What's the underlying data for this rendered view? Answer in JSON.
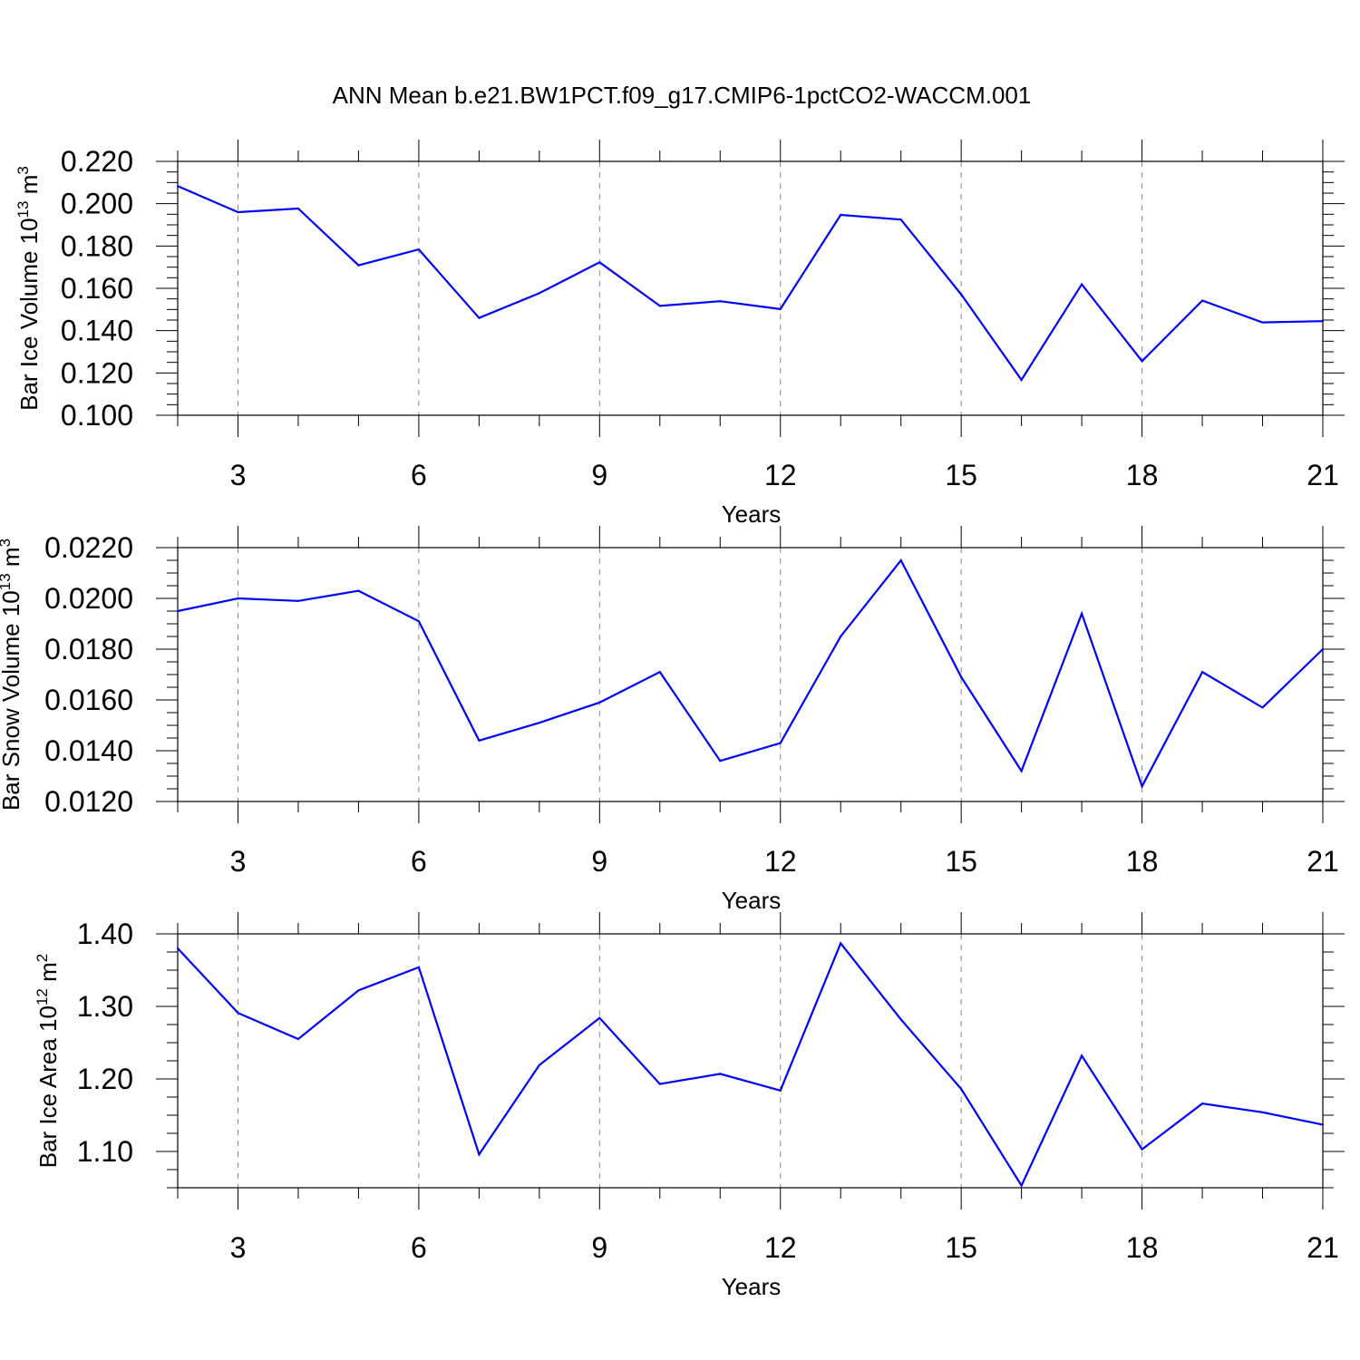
{
  "title": "ANN Mean b.e21.BW1PCT.f09_g17.CMIP6-1pctCO2-WACCM.001",
  "colors": {
    "series": "#0000ff",
    "axis": "#000000",
    "grid": "#888888"
  },
  "chart_data": [
    {
      "type": "line",
      "ylabel": {
        "text": "Bar Ice Volume 10",
        "sup1": "13",
        "mid": " m",
        "sup2": "3"
      },
      "xlabel": "Years",
      "xlim": [
        2,
        21
      ],
      "ylim": [
        0.1,
        0.22
      ],
      "xticks": [
        3,
        6,
        9,
        12,
        15,
        18,
        21
      ],
      "yticks": [
        0.1,
        0.12,
        0.14,
        0.16,
        0.18,
        0.2,
        0.22
      ],
      "ytick_labels": [
        "0.100",
        "0.120",
        "0.140",
        "0.160",
        "0.180",
        "0.200",
        "0.220"
      ],
      "y_minor_step": 0.005,
      "grid_x": true,
      "x": [
        2,
        3,
        4,
        5,
        6,
        7,
        8,
        9,
        10,
        11,
        12,
        13,
        14,
        15,
        16,
        17,
        18,
        19,
        20,
        21
      ],
      "y": [
        0.2083,
        0.196,
        0.1977,
        0.1709,
        0.1784,
        0.146,
        0.1577,
        0.1723,
        0.1517,
        0.1539,
        0.1502,
        0.1947,
        0.1925,
        0.1571,
        0.1167,
        0.1619,
        0.1256,
        0.1542,
        0.1439,
        0.1445
      ]
    },
    {
      "type": "line",
      "ylabel": {
        "text": "Bar Snow Volume 10",
        "sup1": "13",
        "mid": " m",
        "sup2": "3"
      },
      "xlabel": "Years",
      "xlim": [
        2,
        21
      ],
      "ylim": [
        0.012,
        0.022
      ],
      "xticks": [
        3,
        6,
        9,
        12,
        15,
        18,
        21
      ],
      "yticks": [
        0.012,
        0.014,
        0.016,
        0.018,
        0.02,
        0.022
      ],
      "ytick_labels": [
        "0.0120",
        "0.0140",
        "0.0160",
        "0.0180",
        "0.0200",
        "0.0220"
      ],
      "y_minor_step": 0.0005,
      "grid_x": true,
      "x": [
        2,
        3,
        4,
        5,
        6,
        7,
        8,
        9,
        10,
        11,
        12,
        13,
        14,
        15,
        16,
        17,
        18,
        19,
        20,
        21
      ],
      "y": [
        0.0195,
        0.02,
        0.0199,
        0.0203,
        0.0191,
        0.0144,
        0.0151,
        0.0159,
        0.0171,
        0.0136,
        0.0143,
        0.0185,
        0.0215,
        0.0169,
        0.0132,
        0.0194,
        0.0126,
        0.0171,
        0.0157,
        0.018
      ]
    },
    {
      "type": "line",
      "ylabel": {
        "text": "Bar Ice Area 10",
        "sup1": "12",
        "mid": " m",
        "sup2": "2"
      },
      "xlabel": "Years",
      "xlim": [
        2,
        21
      ],
      "ylim": [
        1.05,
        1.4
      ],
      "xticks": [
        3,
        6,
        9,
        12,
        15,
        18,
        21
      ],
      "yticks": [
        1.1,
        1.2,
        1.3,
        1.4
      ],
      "ytick_labels": [
        "1.10",
        "1.20",
        "1.30",
        "1.40"
      ],
      "y_minor_step": 0.025,
      "grid_x": true,
      "x": [
        2,
        3,
        4,
        5,
        6,
        7,
        8,
        9,
        10,
        11,
        12,
        13,
        14,
        15,
        16,
        17,
        18,
        19,
        20,
        21
      ],
      "y": [
        1.38,
        1.291,
        1.255,
        1.322,
        1.354,
        1.096,
        1.219,
        1.284,
        1.193,
        1.207,
        1.184,
        1.387,
        1.282,
        1.186,
        1.053,
        1.232,
        1.103,
        1.166,
        1.154,
        1.137
      ]
    }
  ]
}
